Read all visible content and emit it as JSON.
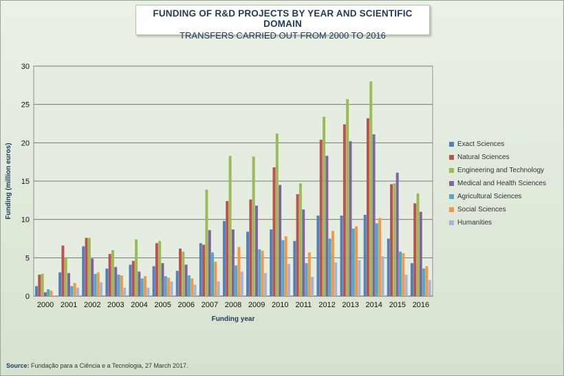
{
  "header": {
    "title": "FUNDING OF R&D PROJECTS BY YEAR AND SCIENTIFIC DOMAIN",
    "subtitle": "TRANSFERS CARRIED OUT FROM 2000 TO 2016"
  },
  "footer": {
    "source_label": "Source:",
    "source_text": " Fundação para a Ciência e a Tecnologia, 27 March 2017."
  },
  "chart_data": {
    "type": "bar",
    "title": "FUNDING OF R&D PROJECTS BY YEAR AND SCIENTIFIC DOMAIN",
    "subtitle": "TRANSFERS CARRIED OUT FROM 2000 TO 2016",
    "xlabel": "Funding year",
    "ylabel": "Funding (million euros)",
    "ylim": [
      0,
      30
    ],
    "yticks": [
      0,
      5,
      10,
      15,
      20,
      25,
      30
    ],
    "grid": true,
    "legend_position": "right",
    "categories": [
      "2000",
      "2001",
      "2002",
      "2003",
      "2004",
      "2005",
      "2006",
      "2007",
      "2008",
      "2009",
      "2010",
      "2011",
      "2012",
      "2013",
      "2014",
      "2015",
      "2016"
    ],
    "series": [
      {
        "name": "Exact Sciences",
        "color": "#4f81bd",
        "values": [
          1.3,
          3.1,
          6.5,
          3.6,
          4.1,
          3.9,
          3.3,
          6.9,
          9.8,
          8.4,
          8.7,
          7.2,
          10.5,
          10.5,
          10.6,
          7.5,
          4.3
        ]
      },
      {
        "name": "Natural Sciences",
        "color": "#c0504d",
        "values": [
          2.8,
          6.6,
          7.6,
          5.5,
          4.6,
          6.9,
          6.2,
          6.7,
          12.4,
          12.6,
          16.8,
          13.3,
          20.4,
          22.4,
          23.2,
          14.6,
          12.1
        ]
      },
      {
        "name": "Engineering and Technology",
        "color": "#9bbb59",
        "values": [
          2.9,
          5.0,
          7.6,
          6.0,
          7.4,
          7.2,
          5.8,
          13.9,
          18.3,
          18.2,
          21.2,
          14.7,
          23.4,
          25.7,
          28.0,
          14.7,
          13.4
        ]
      },
      {
        "name": "Medical and Health Sciences",
        "color": "#8064a2",
        "values": [
          0.5,
          3.0,
          4.9,
          3.8,
          3.2,
          4.3,
          4.1,
          8.6,
          8.7,
          11.8,
          14.5,
          11.3,
          18.3,
          20.2,
          21.1,
          16.1,
          11.0
        ]
      },
      {
        "name": "Agricultural Sciences",
        "color": "#4bacc6",
        "values": [
          0.9,
          1.3,
          2.9,
          2.8,
          2.3,
          2.6,
          2.7,
          5.7,
          4.0,
          6.1,
          7.3,
          4.3,
          7.5,
          8.8,
          9.5,
          5.8,
          3.6
        ]
      },
      {
        "name": "Social Sciences",
        "color": "#f79646",
        "values": [
          0.7,
          1.7,
          3.1,
          2.7,
          2.6,
          2.4,
          2.3,
          4.5,
          6.4,
          5.9,
          7.8,
          5.7,
          8.5,
          9.1,
          10.2,
          5.6,
          3.9
        ]
      },
      {
        "name": "Humanities",
        "color": "#a5b5d5",
        "values": [
          0.1,
          1.1,
          1.8,
          1.1,
          1.1,
          1.9,
          1.5,
          1.9,
          3.2,
          3.0,
          4.2,
          2.5,
          4.4,
          4.7,
          5.2,
          2.8,
          2.1
        ]
      }
    ]
  }
}
